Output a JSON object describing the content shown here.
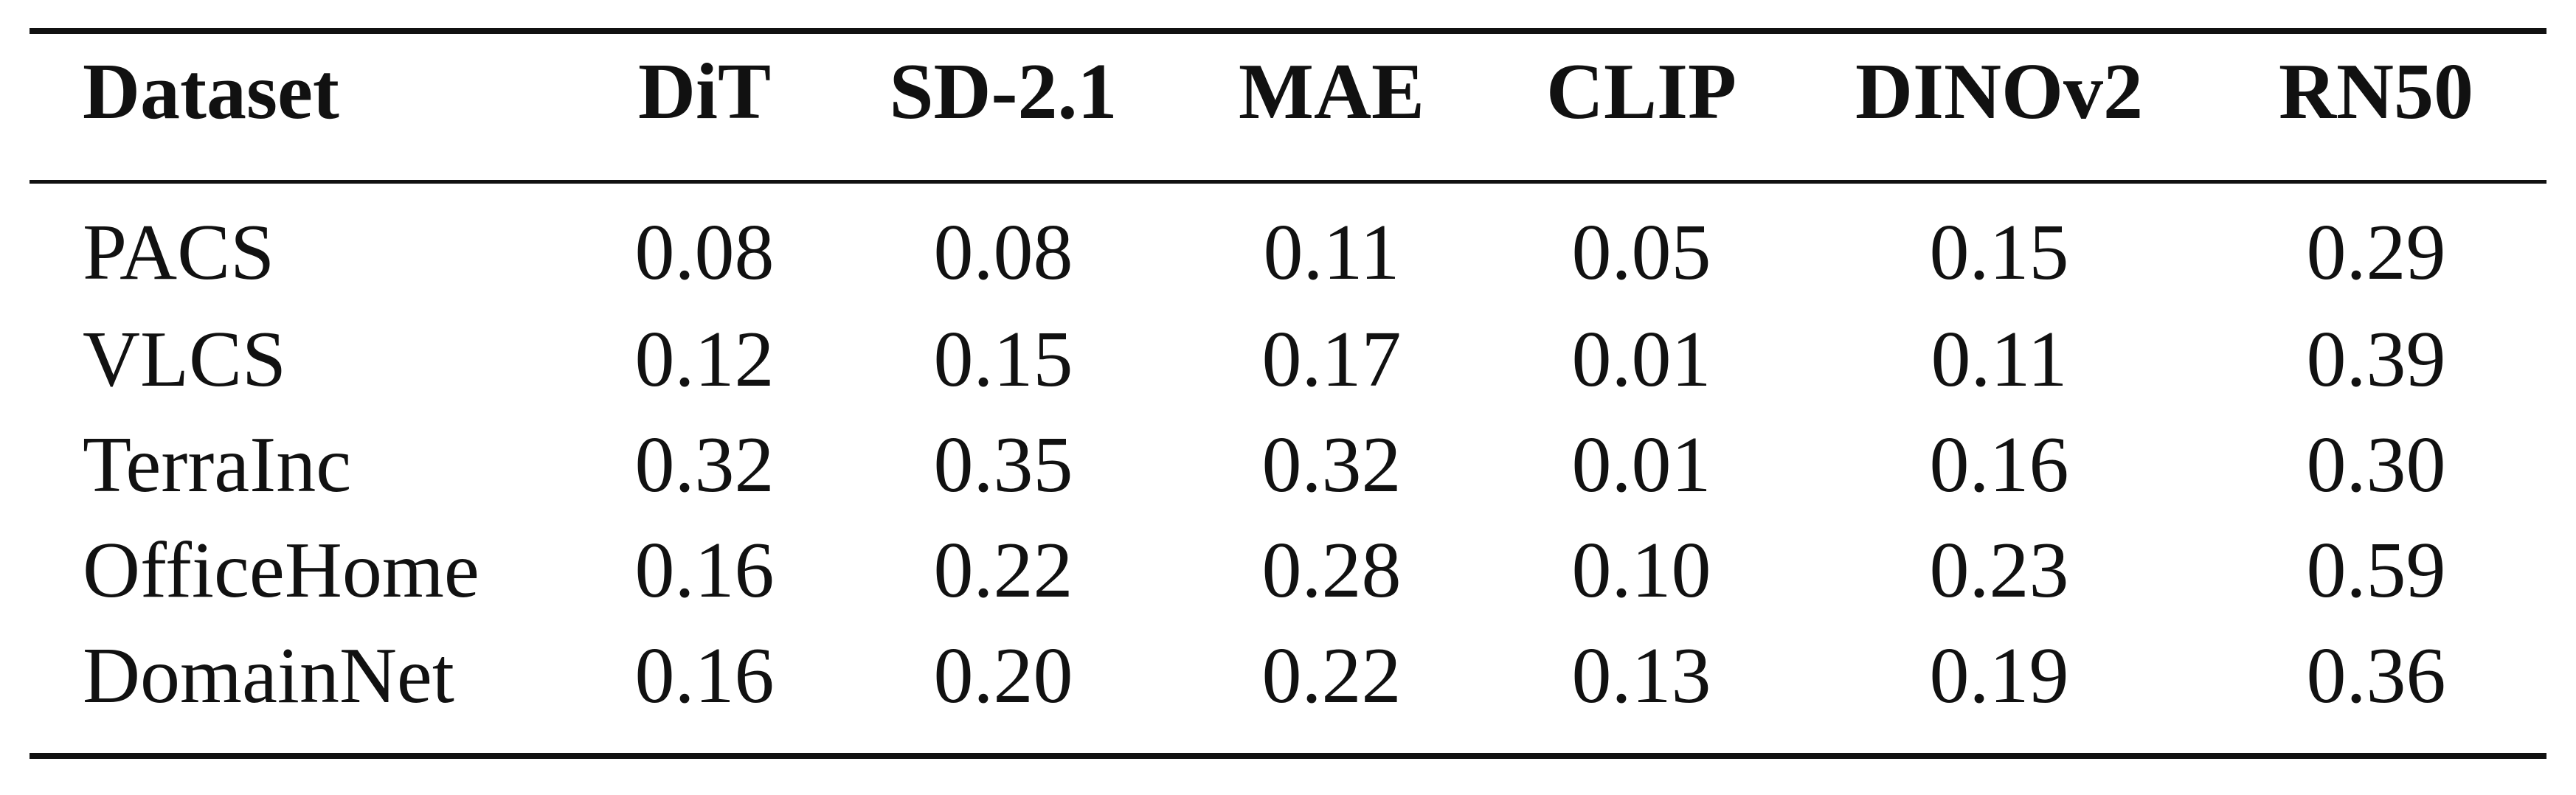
{
  "table": {
    "columns": [
      "Dataset",
      "DiT",
      "SD-2.1",
      "MAE",
      "CLIP",
      "DINOv2",
      "RN50"
    ],
    "rows": [
      {
        "dataset": "PACS",
        "values": [
          "0.08",
          "0.08",
          "0.11",
          "0.05",
          "0.15",
          "0.29"
        ]
      },
      {
        "dataset": "VLCS",
        "values": [
          "0.12",
          "0.15",
          "0.17",
          "0.01",
          "0.11",
          "0.39"
        ]
      },
      {
        "dataset": "TerraInc",
        "values": [
          "0.32",
          "0.35",
          "0.32",
          "0.01",
          "0.16",
          "0.30"
        ]
      },
      {
        "dataset": "OfficeHome",
        "values": [
          "0.16",
          "0.22",
          "0.28",
          "0.10",
          "0.23",
          "0.59"
        ]
      },
      {
        "dataset": "DomainNet",
        "values": [
          "0.16",
          "0.20",
          "0.22",
          "0.13",
          "0.19",
          "0.36"
        ]
      }
    ]
  }
}
